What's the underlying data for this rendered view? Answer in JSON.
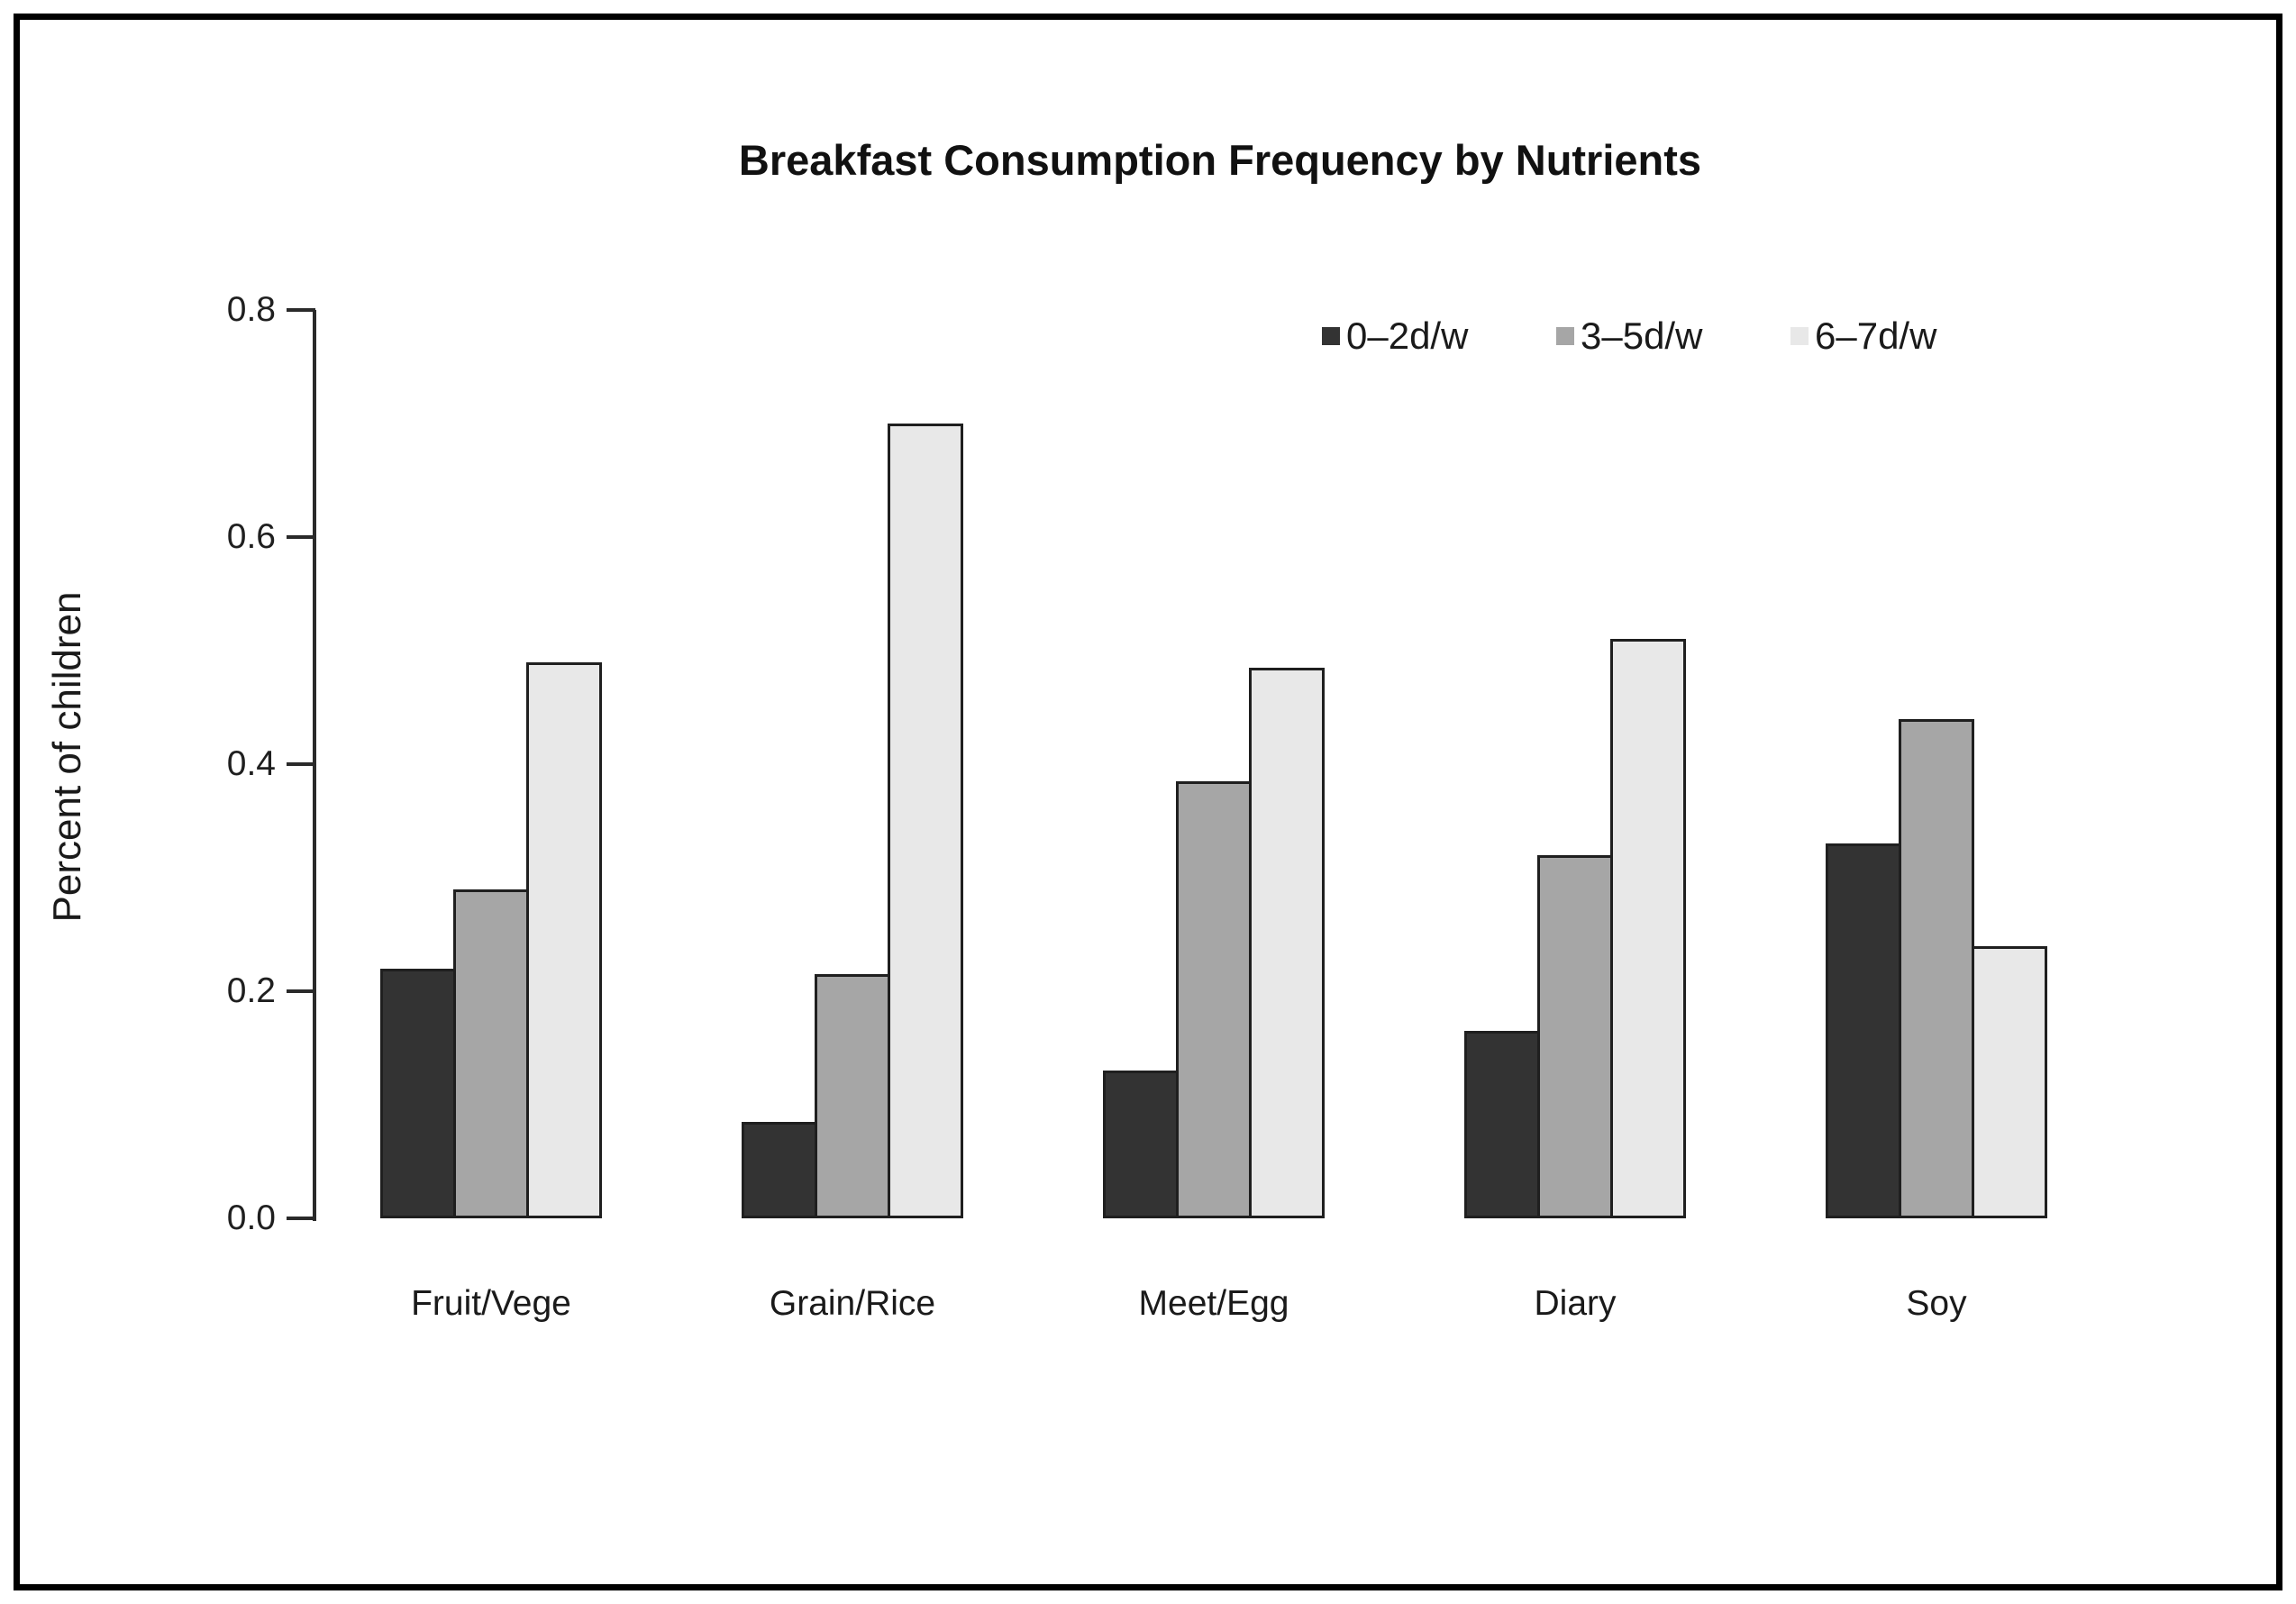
{
  "page": {
    "background_color": "#ffffff",
    "frame_color": "#000000"
  },
  "chart_data": {
    "type": "bar",
    "title": "Breakfast Consumption Frequency by Nutrients",
    "xlabel": "",
    "ylabel": "Percent of children",
    "categories": [
      "Fruit/Vege",
      "Grain/Rice",
      "Meet/Egg",
      "Diary",
      "Soy"
    ],
    "series": [
      {
        "name": "0–2d/w",
        "color": "#333333",
        "values": [
          0.22,
          0.085,
          0.13,
          0.165,
          0.33
        ]
      },
      {
        "name": "3–5d/w",
        "color": "#a6a6a6",
        "values": [
          0.29,
          0.215,
          0.385,
          0.32,
          0.44
        ]
      },
      {
        "name": "6–7d/w",
        "color": "#e8e8e8",
        "values": [
          0.49,
          0.7,
          0.485,
          0.51,
          0.24
        ]
      }
    ],
    "ylim": [
      0,
      0.8
    ],
    "yticks": [
      "0.0",
      "0.2",
      "0.4",
      "0.6",
      "0.8"
    ],
    "legend_position": "top-right",
    "grid": false,
    "bar_border_color": "#1f1f1f"
  }
}
